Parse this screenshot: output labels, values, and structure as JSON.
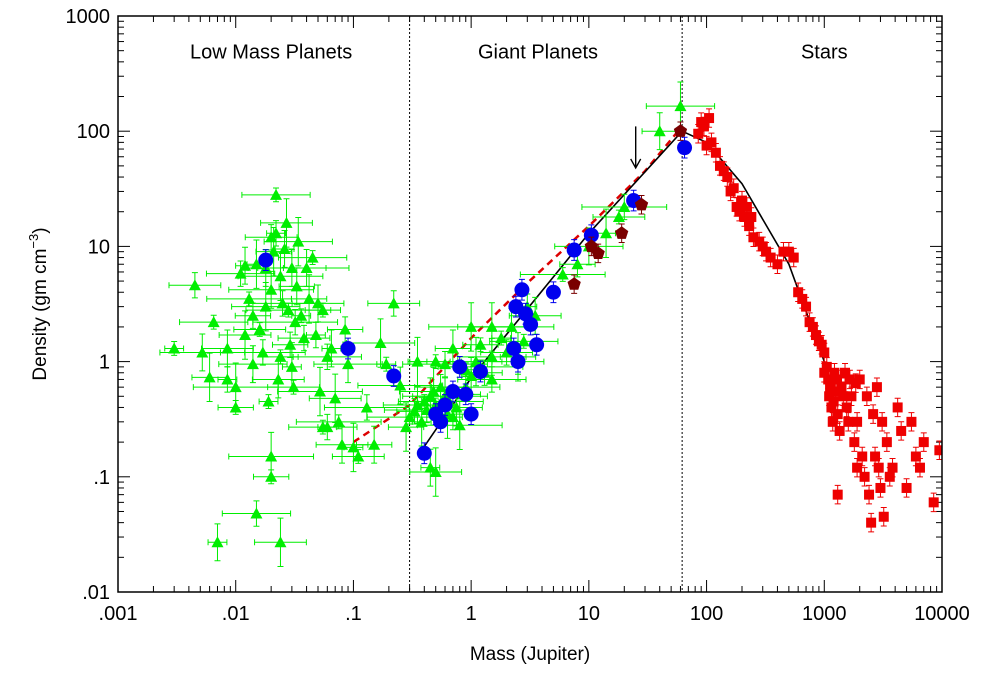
{
  "chart_data": {
    "type": "scatter",
    "title": "",
    "xlabel": "Mass (Jupiter)",
    "ylabel": "Density (gm cm",
    "ylabel_superscript": "−3",
    "ylabel_close": ")",
    "xscale": "log",
    "yscale": "log",
    "xlim": [
      0.001,
      10000
    ],
    "ylim": [
      0.01,
      1000
    ],
    "x_ticks": [
      {
        "value": 0.001,
        "label": ".001"
      },
      {
        "value": 0.01,
        "label": ".01"
      },
      {
        "value": 0.1,
        "label": ".1"
      },
      {
        "value": 1,
        "label": "1"
      },
      {
        "value": 10,
        "label": "10"
      },
      {
        "value": 100,
        "label": "100"
      },
      {
        "value": 1000,
        "label": "1000"
      },
      {
        "value": 10000,
        "label": "10000"
      }
    ],
    "y_ticks": [
      {
        "value": 0.01,
        "label": ".01"
      },
      {
        "value": 0.1,
        "label": ".1"
      },
      {
        "value": 1,
        "label": "1"
      },
      {
        "value": 10,
        "label": "10"
      },
      {
        "value": 100,
        "label": "100"
      },
      {
        "value": 1000,
        "label": "1000"
      }
    ],
    "region_labels": [
      {
        "text": "Low Mass Planets",
        "x": 0.02,
        "y": 500
      },
      {
        "text": "Giant Planets",
        "x": 3.7,
        "y": 500
      },
      {
        "text": "Stars",
        "x": 1000,
        "y": 500
      }
    ],
    "dividers": [
      0.3,
      62
    ],
    "arrow": {
      "x": 25,
      "y_from": 110,
      "y_to": 48
    },
    "colors": {
      "green": "#00ee00",
      "blue": "#0000ee",
      "maroon": "#7a0000",
      "red": "#ee0000",
      "dashed": "#dd0000",
      "black": "#000000"
    },
    "fit_line": [
      [
        0.38,
        0.17
      ],
      [
        1,
        0.72
      ],
      [
        10,
        13
      ],
      [
        62,
        100
      ],
      [
        100,
        80
      ],
      [
        200,
        35
      ],
      [
        500,
        7
      ],
      [
        1000,
        1
      ]
    ],
    "dashed_line": [
      [
        0.1,
        0.2
      ],
      [
        0.3,
        0.42
      ],
      [
        1,
        1.6
      ],
      [
        3,
        4.8
      ],
      [
        10,
        15
      ],
      [
        30,
        45
      ],
      [
        62,
        110
      ]
    ],
    "series": [
      {
        "marker": "triangle",
        "color": "green",
        "points": [
          [
            0.003,
            1.3
          ],
          [
            0.0045,
            4.6
          ],
          [
            0.0052,
            1.2
          ],
          [
            0.006,
            0.73
          ],
          [
            0.0065,
            2.2
          ],
          [
            0.0085,
            0.7
          ],
          [
            0.0085,
            1.3
          ],
          [
            0.01,
            0.6
          ],
          [
            0.01,
            0.4
          ],
          [
            0.011,
            5.8
          ],
          [
            0.012,
            6.8
          ],
          [
            0.012,
            1.7
          ],
          [
            0.013,
            3.5
          ],
          [
            0.014,
            2.5
          ],
          [
            0.014,
            0.95
          ],
          [
            0.015,
            7
          ],
          [
            0.016,
            1.9
          ],
          [
            0.017,
            1.2
          ],
          [
            0.018,
            6.5
          ],
          [
            0.018,
            3
          ],
          [
            0.019,
            0.45
          ],
          [
            0.02,
            12
          ],
          [
            0.02,
            4.2
          ],
          [
            0.021,
            9
          ],
          [
            0.022,
            28
          ],
          [
            0.022,
            13
          ],
          [
            0.023,
            0.7
          ],
          [
            0.024,
            5.5
          ],
          [
            0.024,
            1.1
          ],
          [
            0.025,
            3.2
          ],
          [
            0.026,
            9.5
          ],
          [
            0.027,
            16
          ],
          [
            0.028,
            2.8
          ],
          [
            0.029,
            1.4
          ],
          [
            0.03,
            6.5
          ],
          [
            0.03,
            0.9
          ],
          [
            0.031,
            0.6
          ],
          [
            0.032,
            2.2
          ],
          [
            0.033,
            4.5
          ],
          [
            0.034,
            11
          ],
          [
            0.036,
            2.5
          ],
          [
            0.038,
            1.6
          ],
          [
            0.04,
            6.5
          ],
          [
            0.042,
            3.5
          ],
          [
            0.045,
            8
          ],
          [
            0.048,
            1.7
          ],
          [
            0.05,
            3.2
          ],
          [
            0.052,
            0.55
          ],
          [
            0.055,
            2.8
          ],
          [
            0.06,
            1.1
          ],
          [
            0.065,
            1.3
          ],
          [
            0.07,
            0.48
          ],
          [
            0.075,
            0.3
          ],
          [
            0.085,
            1.9
          ],
          [
            0.09,
            0.95
          ],
          [
            0.1,
            0.18
          ],
          [
            0.11,
            0.15
          ],
          [
            0.13,
            0.4
          ],
          [
            0.15,
            0.19
          ],
          [
            0.17,
            1.45
          ],
          [
            0.19,
            0.95
          ],
          [
            0.22,
            3.2
          ],
          [
            0.25,
            0.62
          ],
          [
            0.28,
            0.27
          ],
          [
            0.055,
            0.27
          ],
          [
            0.06,
            0.27
          ],
          [
            0.08,
            0.19
          ],
          [
            0.02,
            0.15
          ],
          [
            0.02,
            0.1
          ],
          [
            0.015,
            0.048
          ],
          [
            0.007,
            0.027
          ],
          [
            0.024,
            0.027
          ],
          [
            0.3,
            0.33
          ],
          [
            0.33,
            0.37
          ],
          [
            0.35,
            0.42
          ],
          [
            0.38,
            0.3
          ],
          [
            0.4,
            0.45
          ],
          [
            0.42,
            0.38
          ],
          [
            0.45,
            0.5
          ],
          [
            0.48,
            0.55
          ],
          [
            0.5,
            0.42
          ],
          [
            0.55,
            0.6
          ],
          [
            0.6,
            0.5
          ],
          [
            0.63,
            0.35
          ],
          [
            0.65,
            0.45
          ],
          [
            0.7,
            0.33
          ],
          [
            0.75,
            0.4
          ],
          [
            0.8,
            0.28
          ],
          [
            0.85,
            0.52
          ],
          [
            0.9,
            0.6
          ],
          [
            1,
            0.75
          ],
          [
            1.1,
            1
          ],
          [
            1.2,
            0.9
          ],
          [
            1.3,
            0.8
          ],
          [
            1.5,
            1.1
          ],
          [
            0.35,
            1
          ],
          [
            0.5,
            1
          ],
          [
            0.6,
            0.95
          ],
          [
            0.7,
            1.3
          ],
          [
            1.5,
            2
          ],
          [
            1.8,
            1.6
          ],
          [
            2,
            1.2
          ],
          [
            2.2,
            2
          ],
          [
            2.5,
            1.1
          ],
          [
            2.8,
            1.5
          ],
          [
            3,
            3
          ],
          [
            3.5,
            2.5
          ],
          [
            1,
            2
          ],
          [
            1.2,
            1.4
          ],
          [
            1.5,
            0.7
          ],
          [
            0.45,
            0.12
          ],
          [
            0.5,
            0.11
          ],
          [
            6,
            5.7
          ],
          [
            8,
            7
          ],
          [
            10,
            10
          ],
          [
            14,
            13
          ],
          [
            18,
            18
          ],
          [
            20,
            22
          ],
          [
            40,
            100
          ],
          [
            60,
            165
          ],
          [
            0.9,
            0.85
          ],
          [
            2.5,
            1
          ]
        ]
      },
      {
        "marker": "circle",
        "color": "blue",
        "points": [
          [
            0.018,
            7.6
          ],
          [
            0.09,
            1.3
          ],
          [
            0.22,
            0.75
          ],
          [
            0.4,
            0.16
          ],
          [
            0.5,
            0.35
          ],
          [
            0.55,
            0.3
          ],
          [
            0.6,
            0.42
          ],
          [
            0.7,
            0.55
          ],
          [
            0.8,
            0.9
          ],
          [
            0.9,
            0.52
          ],
          [
            1,
            0.35
          ],
          [
            1.2,
            0.82
          ],
          [
            2.3,
            1.3
          ],
          [
            2.4,
            3
          ],
          [
            2.5,
            1
          ],
          [
            2.7,
            4.2
          ],
          [
            2.9,
            2.6
          ],
          [
            3.2,
            2.1
          ],
          [
            3.6,
            1.4
          ],
          [
            5,
            4
          ],
          [
            7.5,
            9.3
          ],
          [
            10.5,
            12.5
          ],
          [
            24,
            25
          ],
          [
            65,
            72
          ]
        ]
      },
      {
        "marker": "pentagon",
        "color": "maroon",
        "points": [
          [
            7.5,
            4.7
          ],
          [
            10.5,
            10
          ],
          [
            12,
            8.7
          ],
          [
            19,
            13
          ],
          [
            28,
            23
          ],
          [
            60,
            100
          ]
        ]
      },
      {
        "marker": "square",
        "color": "red",
        "points": [
          [
            85,
            95
          ],
          [
            90,
            120
          ],
          [
            95,
            110
          ],
          [
            100,
            75
          ],
          [
            105,
            130
          ],
          [
            110,
            80
          ],
          [
            120,
            65
          ],
          [
            130,
            50
          ],
          [
            140,
            45
          ],
          [
            150,
            40
          ],
          [
            160,
            30
          ],
          [
            170,
            32
          ],
          [
            180,
            22
          ],
          [
            190,
            20
          ],
          [
            200,
            25
          ],
          [
            210,
            18
          ],
          [
            220,
            22
          ],
          [
            230,
            15
          ],
          [
            240,
            18
          ],
          [
            250,
            12
          ],
          [
            280,
            11
          ],
          [
            300,
            10
          ],
          [
            320,
            9
          ],
          [
            350,
            8
          ],
          [
            400,
            7
          ],
          [
            450,
            9
          ],
          [
            500,
            9
          ],
          [
            550,
            8
          ],
          [
            600,
            4
          ],
          [
            650,
            3.5
          ],
          [
            700,
            3
          ],
          [
            750,
            2.2
          ],
          [
            800,
            2
          ],
          [
            850,
            1.7
          ],
          [
            900,
            1.5
          ],
          [
            950,
            1.4
          ],
          [
            1000,
            1.2
          ],
          [
            1000,
            0.8
          ],
          [
            1050,
            0.9
          ],
          [
            1080,
            0.7
          ],
          [
            1100,
            0.5
          ],
          [
            1120,
            0.6
          ],
          [
            1150,
            0.4
          ],
          [
            1180,
            0.3
          ],
          [
            1200,
            0.45
          ],
          [
            1220,
            0.8
          ],
          [
            1250,
            0.55
          ],
          [
            1280,
            0.7
          ],
          [
            1300,
            0.35
          ],
          [
            1350,
            0.25
          ],
          [
            1400,
            0.6
          ],
          [
            1450,
            0.5
          ],
          [
            1500,
            0.8
          ],
          [
            1550,
            0.4
          ],
          [
            1600,
            0.3
          ],
          [
            1650,
            0.7
          ],
          [
            1700,
            0.5
          ],
          [
            1800,
            0.2
          ],
          [
            1850,
            0.65
          ],
          [
            1900,
            0.3
          ],
          [
            2000,
            0.7
          ],
          [
            2100,
            0.15
          ],
          [
            2200,
            0.1
          ],
          [
            2300,
            0.5
          ],
          [
            2400,
            0.07
          ],
          [
            2500,
            0.04
          ],
          [
            2600,
            0.35
          ],
          [
            2700,
            0.15
          ],
          [
            2800,
            0.6
          ],
          [
            3000,
            0.08
          ],
          [
            3100,
            0.3
          ],
          [
            3200,
            0.045
          ],
          [
            3400,
            0.2
          ],
          [
            3600,
            0.1
          ],
          [
            3800,
            0.12
          ],
          [
            4200,
            0.4
          ],
          [
            4500,
            0.25
          ],
          [
            5000,
            0.08
          ],
          [
            5500,
            0.3
          ],
          [
            6000,
            0.15
          ],
          [
            6500,
            0.12
          ],
          [
            7000,
            0.2
          ],
          [
            8500,
            0.06
          ],
          [
            9500,
            0.17
          ],
          [
            1300,
            0.07
          ],
          [
            1900,
            0.12
          ],
          [
            2900,
            0.12
          ]
        ]
      }
    ]
  }
}
